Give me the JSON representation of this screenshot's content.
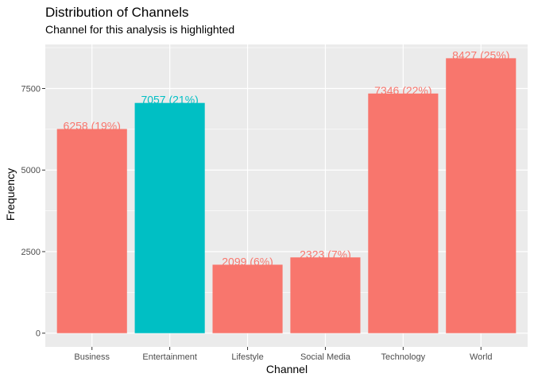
{
  "chart_data": {
    "type": "bar",
    "title": "Distribution of Channels",
    "subtitle": "Channel for this analysis is highlighted",
    "xlabel": "Channel",
    "ylabel": "Frequency",
    "categories": [
      "Business",
      "Entertainment",
      "Lifestyle",
      "Social Media",
      "Technology",
      "World"
    ],
    "values": [
      6258,
      7057,
      2099,
      2323,
      7346,
      8427
    ],
    "data_labels": [
      "6258 (19%)",
      "7057 (21%)",
      "2099 (6%)",
      "2323 (7%)",
      "7346 (22%)",
      "8427 (25%)"
    ],
    "highlighted": [
      false,
      true,
      false,
      false,
      false,
      false
    ],
    "yticks": [
      0,
      2500,
      5000,
      7500
    ],
    "ytick_labels": [
      "0",
      "2500",
      "5000",
      "7500"
    ],
    "ylim": [
      -420,
      8850
    ],
    "grid": true,
    "legend": "none",
    "colors": {
      "bar": "#F8766D",
      "highlight": "#00BFC4",
      "panel": "#EBEBEB",
      "grid": "#FFFFFF"
    }
  }
}
